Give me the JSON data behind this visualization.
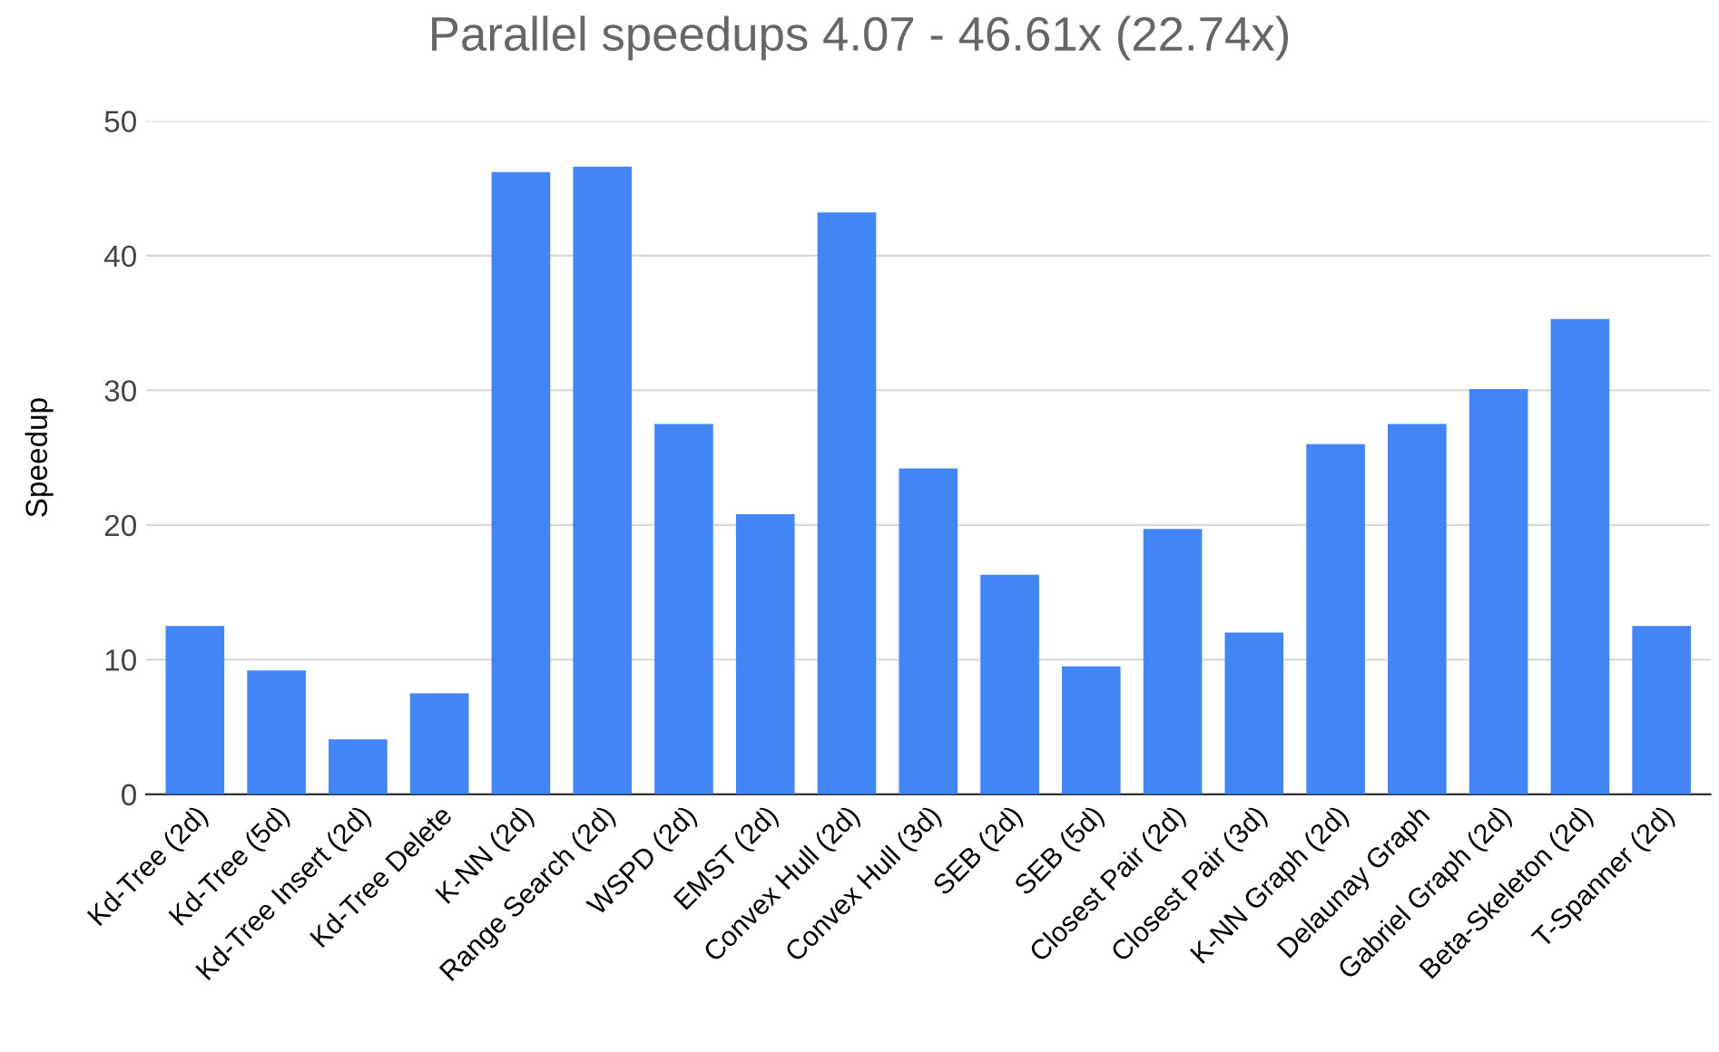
{
  "chart_data": {
    "type": "bar",
    "title": "Parallel speedups 4.07 - 46.61x (22.74x)",
    "ylabel": "Speedup",
    "categories": [
      "Kd-Tree (2d)",
      "Kd-Tree (5d)",
      "Kd-Tree Insert (2d)",
      "Kd-Tree Delete",
      "K-NN (2d)",
      "Range Search (2d)",
      "WSPD (2d)",
      "EMST (2d)",
      "Convex Hull (2d)",
      "Convex Hull (3d)",
      "SEB (2d)",
      "SEB (5d)",
      "Closest Pair (2d)",
      "Closest Pair (3d)",
      "K-NN Graph (2d)",
      "Delaunay Graph",
      "Gabriel Graph (2d)",
      "Beta-Skeleton (2d)",
      "T-Spanner (2d)"
    ],
    "values": [
      12.5,
      9.2,
      4.07,
      7.5,
      46.2,
      46.61,
      27.5,
      20.8,
      43.2,
      24.2,
      16.3,
      9.5,
      19.7,
      12.0,
      26.0,
      27.5,
      30.1,
      35.3,
      12.5
    ],
    "color": "#4285f4",
    "ylim": [
      0,
      50
    ],
    "yticks": [
      0,
      10,
      20,
      30,
      40,
      50
    ],
    "grid": "y"
  }
}
